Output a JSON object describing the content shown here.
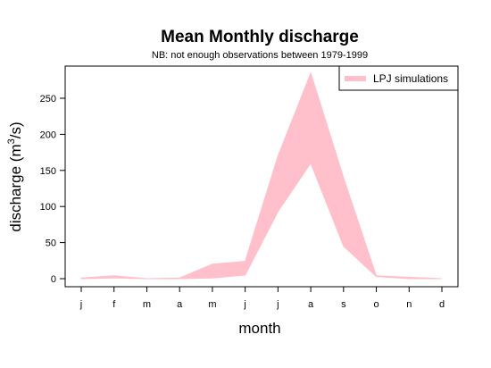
{
  "chart_data": {
    "type": "area",
    "title": "Mean Monthly discharge",
    "subtitle": "NB: not enough observations between 1979-1999",
    "xlabel": "month",
    "ylabel": "discharge (m",
    "ylabel_sup": "3",
    "ylabel_tail": "/s)",
    "categories": [
      "j",
      "f",
      "m",
      "a",
      "m",
      "j",
      "j",
      "a",
      "s",
      "o",
      "n",
      "d"
    ],
    "y_ticks": [
      0,
      50,
      100,
      150,
      200,
      250
    ],
    "ylim": [
      -10,
      295
    ],
    "grid": false,
    "legend_position": "top-right",
    "series": [
      {
        "name": "LPJ simulations",
        "color": "#FFC0CB",
        "lower": [
          0,
          1,
          0,
          0,
          1,
          5,
          93,
          160,
          45,
          3,
          0,
          0
        ],
        "upper": [
          1,
          4,
          0,
          1,
          20,
          24,
          170,
          285,
          140,
          4,
          2,
          0
        ]
      }
    ]
  }
}
